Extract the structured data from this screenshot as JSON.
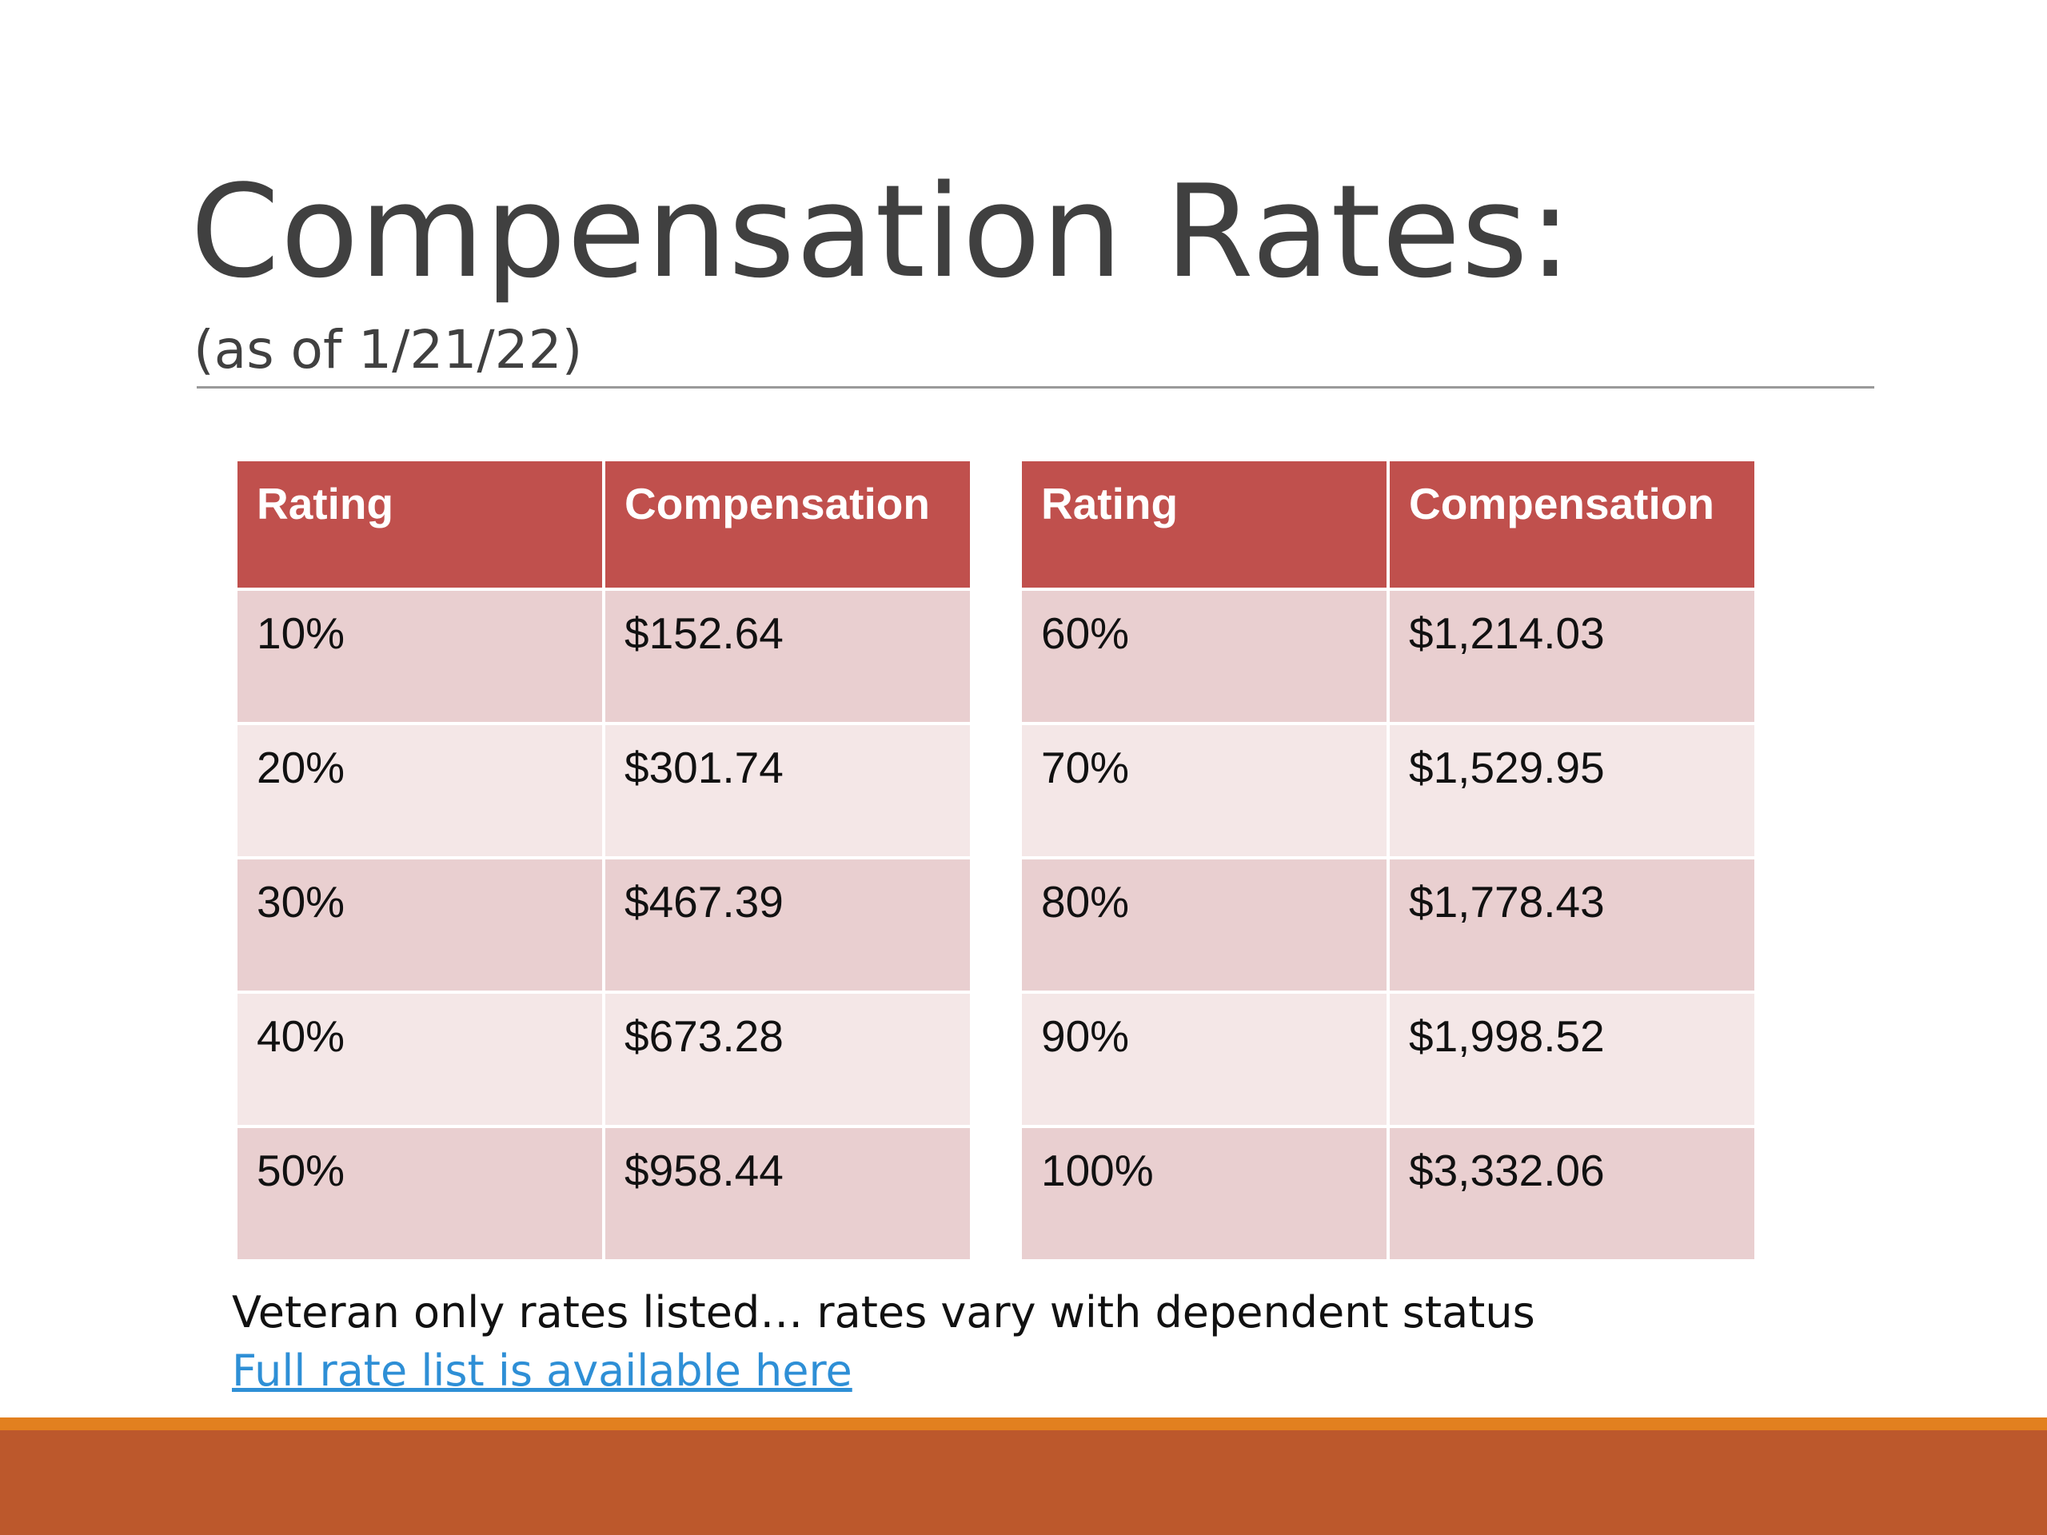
{
  "slide": {
    "title": "Compensation Rates:",
    "subtitle": "(as of 1/21/22)",
    "colors": {
      "header": "#c0504d",
      "row_dark": "#e9cfd0",
      "row_light": "#f4e7e7",
      "accent": "#e2801f",
      "footer": "#bc582c",
      "link": "#2e8fd6"
    }
  },
  "tables": [
    {
      "headers": [
        "Rating",
        "Compensation"
      ],
      "rows": [
        [
          "10%",
          "$152.64"
        ],
        [
          "20%",
          "$301.74"
        ],
        [
          "30%",
          "$467.39"
        ],
        [
          "40%",
          "$673.28"
        ],
        [
          "50%",
          "$958.44"
        ]
      ]
    },
    {
      "headers": [
        "Rating",
        "Compensation"
      ],
      "rows": [
        [
          "60%",
          "$1,214.03"
        ],
        [
          "70%",
          "$1,529.95"
        ],
        [
          "80%",
          "$1,778.43"
        ],
        [
          "90%",
          "$1,998.52"
        ],
        [
          "100%",
          "$3,332.06"
        ]
      ]
    }
  ],
  "footer": {
    "note": "Veteran only rates listed… rates vary with dependent status",
    "link_text": "Full rate list is available here"
  }
}
